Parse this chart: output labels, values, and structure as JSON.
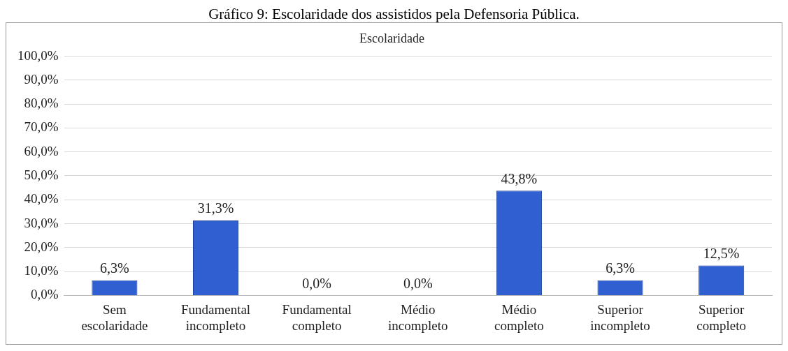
{
  "chart_data": {
    "type": "bar",
    "subtitle": "Gráfico 9: Escolaridade dos assistidos pela Defensoria Pública.",
    "title": "Escolaridade",
    "categories": [
      "Sem escolaridade",
      "Fundamental incompleto",
      "Fundamental completo",
      "Médio incompleto",
      "Médio completo",
      "Superior incompleto",
      "Superior completo"
    ],
    "values": [
      6.3,
      31.3,
      0,
      0,
      43.8,
      6.3,
      12.5
    ],
    "value_labels": [
      "6,3%",
      "31,3%",
      "0,0%",
      "0,0%",
      "43,8%",
      "6,3%",
      "12,5%"
    ],
    "color": "#2f5fd0",
    "ylim": [
      0,
      100
    ],
    "yticks": [
      {
        "value": 0,
        "label": "0,0%"
      },
      {
        "value": 10,
        "label": "10,0%"
      },
      {
        "value": 20,
        "label": "20,0%"
      },
      {
        "value": 30,
        "label": "30,0%"
      },
      {
        "value": 40,
        "label": "40,0%"
      },
      {
        "value": 50,
        "label": "50,0%"
      },
      {
        "value": 60,
        "label": "60,0%"
      },
      {
        "value": 70,
        "label": "70,0%"
      },
      {
        "value": 80,
        "label": "80,0%"
      },
      {
        "value": 90,
        "label": "90,0%"
      },
      {
        "value": 100,
        "label": "100,0%"
      }
    ],
    "grid": "y",
    "legend": false
  }
}
